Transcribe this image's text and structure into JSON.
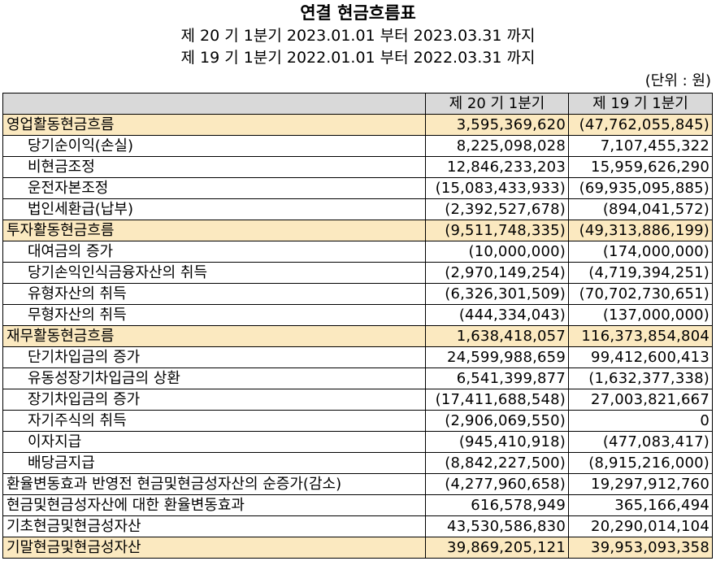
{
  "header": {
    "title": "연결 현금흐름표",
    "period1": "제 20 기 1분기 2023.01.01 부터 2023.03.31 까지",
    "period2": "제 19 기 1분기 2022.01.01 부터 2022.03.31 까지",
    "unit": "(단위 : 원)"
  },
  "table": {
    "columns": [
      "",
      "제 20 기 1분기",
      "제 19 기 1분기"
    ],
    "rows": [
      {
        "label": "영업활동현금흐름",
        "cur": "3,595,369,620",
        "prev": "(47,762,055,845)",
        "highlight": true,
        "indent": false
      },
      {
        "label": "당기순이익(손실)",
        "cur": "8,225,098,028",
        "prev": "7,107,455,322",
        "highlight": false,
        "indent": true
      },
      {
        "label": "비현금조정",
        "cur": "12,846,233,203",
        "prev": "15,959,626,290",
        "highlight": false,
        "indent": true
      },
      {
        "label": "운전자본조정",
        "cur": "(15,083,433,933)",
        "prev": "(69,935,095,885)",
        "highlight": false,
        "indent": true
      },
      {
        "label": "법인세환급(납부)",
        "cur": "(2,392,527,678)",
        "prev": "(894,041,572)",
        "highlight": false,
        "indent": true
      },
      {
        "label": "투자활동현금흐름",
        "cur": "(9,511,748,335)",
        "prev": "(49,313,886,199)",
        "highlight": true,
        "indent": false
      },
      {
        "label": "대여금의 증가",
        "cur": "(10,000,000)",
        "prev": "(174,000,000)",
        "highlight": false,
        "indent": true
      },
      {
        "label": "당기손익인식금융자산의 취득",
        "cur": "(2,970,149,254)",
        "prev": "(4,719,394,251)",
        "highlight": false,
        "indent": true
      },
      {
        "label": "유형자산의 취득",
        "cur": "(6,326,301,509)",
        "prev": "(70,702,730,651)",
        "highlight": false,
        "indent": true
      },
      {
        "label": "무형자산의 취득",
        "cur": "(444,334,043)",
        "prev": "(137,000,000)",
        "highlight": false,
        "indent": true
      },
      {
        "label": "재무활동현금흐름",
        "cur": "1,638,418,057",
        "prev": "116,373,854,804",
        "highlight": true,
        "indent": false
      },
      {
        "label": "단기차입금의 증가",
        "cur": "24,599,988,659",
        "prev": "99,412,600,413",
        "highlight": false,
        "indent": true
      },
      {
        "label": "유동성장기차입금의 상환",
        "cur": "6,541,399,877",
        "prev": "(1,632,377,338)",
        "highlight": false,
        "indent": true
      },
      {
        "label": "장기차입금의 증가",
        "cur": "(17,411,688,548)",
        "prev": "27,003,821,667",
        "highlight": false,
        "indent": true
      },
      {
        "label": "자기주식의 취득",
        "cur": "(2,906,069,550)",
        "prev": "0",
        "highlight": false,
        "indent": true
      },
      {
        "label": "이자지급",
        "cur": "(945,410,918)",
        "prev": "(477,083,417)",
        "highlight": false,
        "indent": true
      },
      {
        "label": "배당금지급",
        "cur": "(8,842,227,500)",
        "prev": "(8,915,216,000)",
        "highlight": false,
        "indent": true
      },
      {
        "label": "환율변동효과 반영전 현금및현금성자산의 순증가(감소)",
        "cur": "(4,277,960,658)",
        "prev": "19,297,912,760",
        "highlight": false,
        "indent": false
      },
      {
        "label": "현금및현금성자산에 대한 환율변동효과",
        "cur": "616,578,949",
        "prev": "365,166,494",
        "highlight": false,
        "indent": false
      },
      {
        "label": "기초현금및현금성자산",
        "cur": "43,530,586,830",
        "prev": "20,290,014,104",
        "highlight": false,
        "indent": false
      },
      {
        "label": "기말현금및현금성자산",
        "cur": "39,869,205,121",
        "prev": "39,953,093,358",
        "highlight": true,
        "indent": false
      }
    ]
  },
  "colors": {
    "highlight": "#fbe9c0",
    "header_bg": "#d9d9d9"
  }
}
